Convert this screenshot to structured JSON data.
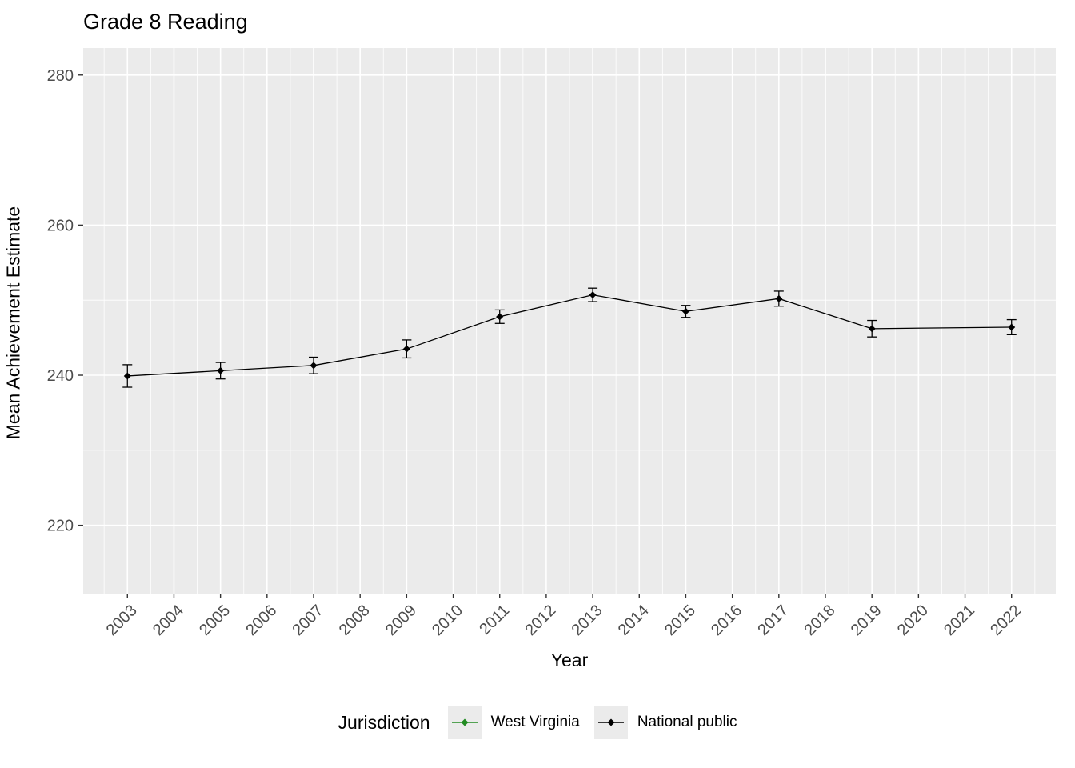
{
  "title": "Grade 8 Reading",
  "axes": {
    "x_label": "Year",
    "y_label": "Mean Achievement Estimate"
  },
  "legend": {
    "title": "Jurisdiction",
    "entries": [
      {
        "label": "West Virginia",
        "color": "#228B22"
      },
      {
        "label": "National public",
        "color": "#000000"
      }
    ]
  },
  "chart_data": {
    "type": "line",
    "title": "Grade 8 Reading",
    "xlabel": "Year",
    "ylabel": "Mean Achievement Estimate",
    "xlim": [
      2002.05,
      2022.95
    ],
    "ylim": [
      210.9,
      283.6
    ],
    "x_ticks": [
      2003,
      2004,
      2005,
      2006,
      2007,
      2008,
      2009,
      2010,
      2011,
      2012,
      2013,
      2014,
      2015,
      2016,
      2017,
      2018,
      2019,
      2020,
      2021,
      2022
    ],
    "x_minor": [
      2002.5,
      2003.5,
      2004.5,
      2005.5,
      2006.5,
      2007.5,
      2008.5,
      2009.5,
      2010.5,
      2011.5,
      2012.5,
      2013.5,
      2014.5,
      2015.5,
      2016.5,
      2017.5,
      2018.5,
      2019.5,
      2020.5,
      2021.5,
      2022.5
    ],
    "y_ticks": [
      220,
      240,
      260,
      280
    ],
    "y_minor": [
      230,
      250,
      270
    ],
    "grid": true,
    "legend_position": "bottom",
    "series": [
      {
        "name": "West Virginia",
        "color": "#228B22",
        "x": [],
        "y": [],
        "se": []
      },
      {
        "name": "National public",
        "color": "#000000",
        "x": [
          2003,
          2005,
          2007,
          2009,
          2011,
          2013,
          2015,
          2017,
          2019,
          2022
        ],
        "y": [
          239.9,
          240.6,
          241.3,
          243.5,
          247.8,
          250.7,
          248.5,
          250.2,
          246.2,
          246.4
        ],
        "se": [
          1.5,
          1.1,
          1.1,
          1.2,
          0.9,
          0.9,
          0.8,
          1.0,
          1.1,
          1.0
        ]
      }
    ],
    "colors": {
      "panel": "#EBEBEB",
      "grid": "#FFFFFF",
      "axis_text": "#4D4D4D",
      "tick": "#333333"
    }
  }
}
